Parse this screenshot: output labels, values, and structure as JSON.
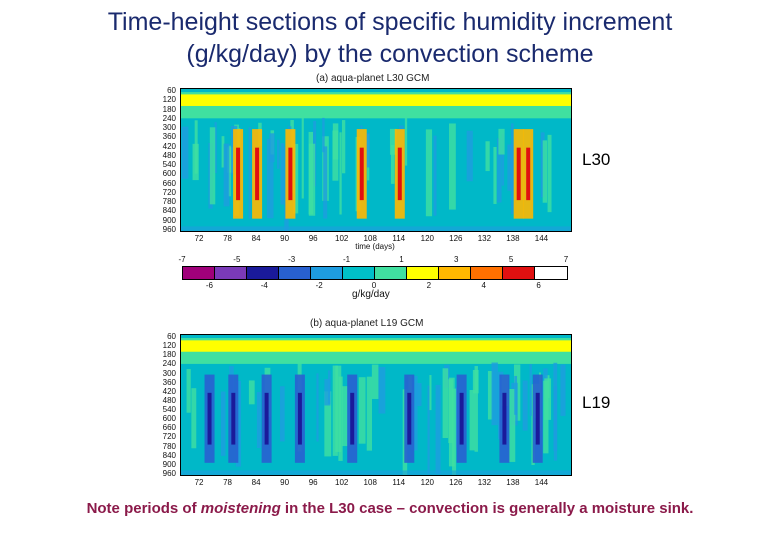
{
  "title_line1": "Time-height sections of specific humidity increment",
  "title_line2": "(g/kg/day) by the convection scheme",
  "panel_a": {
    "title": "(a) aqua-planet L30 GCM",
    "label": "L30",
    "x_title": "time (days)"
  },
  "panel_b": {
    "title": "(b) aqua-planet L19 GCM",
    "label": "L19"
  },
  "colorbar": {
    "unit": "g/kg/day",
    "top_labels": [
      "-7",
      "-5",
      "-3",
      "-1",
      "1",
      "3",
      "5",
      "7"
    ],
    "bottom_labels": [
      "-6",
      "-4",
      "-2",
      "0",
      "2",
      "4",
      "6"
    ],
    "colors": [
      "#a0007a",
      "#7a3ab8",
      "#1a1a9a",
      "#2860d0",
      "#1e9ce0",
      "#00c0c8",
      "#40e0a0",
      "#ffff00",
      "#ffb800",
      "#ff7000",
      "#e01010",
      "#ffffff"
    ]
  },
  "note": {
    "part1": "Note periods of ",
    "emph": "moistening",
    "part2": " in the L30 case – convection is generally a moisture sink."
  },
  "chart_data": [
    {
      "type": "heatmap",
      "title": "(a) aqua-planet L30 GCM",
      "xlabel": "time (days)",
      "ylabel": "",
      "x_ticks": [
        72,
        78,
        84,
        90,
        96,
        102,
        108,
        114,
        120,
        126,
        132,
        138,
        144
      ],
      "y_ticks": [
        60,
        120,
        180,
        240,
        300,
        360,
        420,
        480,
        540,
        600,
        660,
        720,
        780,
        840,
        900,
        960
      ],
      "xlim": [
        68,
        150
      ],
      "ylim": [
        960,
        40
      ],
      "colorbar_levels": [
        -7,
        -6,
        -5,
        -4,
        -3,
        -2,
        -1,
        0,
        1,
        2,
        3,
        4,
        5,
        6,
        7
      ],
      "moistening_bursts_days": [
        80,
        84,
        91,
        106,
        114,
        139,
        141
      ]
    },
    {
      "type": "heatmap",
      "title": "(b) aqua-planet L19 GCM",
      "xlabel": "",
      "ylabel": "",
      "x_ticks": [
        72,
        78,
        84,
        90,
        96,
        102,
        108,
        114,
        120,
        126,
        132,
        138,
        144
      ],
      "y_ticks": [
        60,
        120,
        180,
        240,
        300,
        360,
        420,
        480,
        540,
        600,
        660,
        720,
        780,
        840,
        900,
        960
      ],
      "xlim": [
        68,
        150
      ],
      "ylim": [
        960,
        40
      ],
      "colorbar_levels": [
        -7,
        -6,
        -5,
        -4,
        -3,
        -2,
        -1,
        0,
        1,
        2,
        3,
        4,
        5,
        6,
        7
      ],
      "drying_bursts_days": [
        74,
        79,
        86,
        93,
        104,
        116,
        127,
        136,
        143
      ]
    }
  ]
}
